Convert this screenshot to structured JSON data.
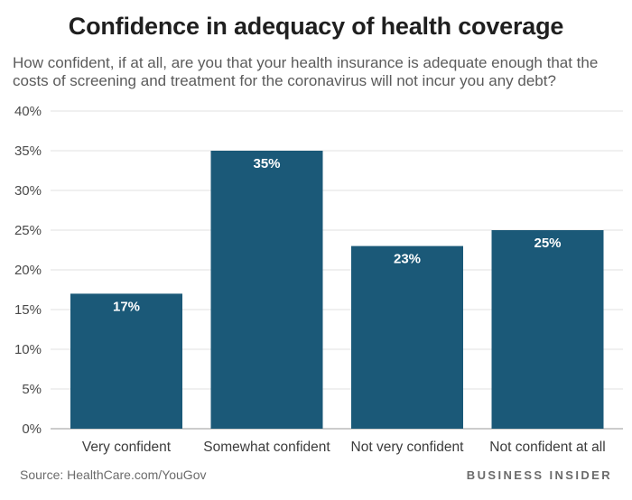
{
  "chart_data": {
    "type": "bar",
    "title": "Confidence in adequacy of health coverage",
    "subtitle": "How confident, if at all, are you that your health insurance is adequate enough that the costs of screening and treatment for the coronavirus will not incur you any debt?",
    "categories": [
      "Very confident",
      "Somewhat confident",
      "Not very confident",
      "Not confident at all"
    ],
    "values": [
      17,
      35,
      23,
      25
    ],
    "data_labels": [
      "17%",
      "35%",
      "23%",
      "25%"
    ],
    "ylim": [
      0,
      40
    ],
    "yticks": [
      0,
      5,
      10,
      15,
      20,
      25,
      30,
      35,
      40
    ],
    "ytick_labels": [
      "0%",
      "5%",
      "10%",
      "15%",
      "20%",
      "25%",
      "30%",
      "35%",
      "40%"
    ],
    "xlabel": "",
    "ylabel": "",
    "grid": true,
    "bar_color": "#1b5978"
  },
  "footer": {
    "source": "Source: HealthCare.com/YouGov",
    "brand": "BUSINESS INSIDER"
  }
}
